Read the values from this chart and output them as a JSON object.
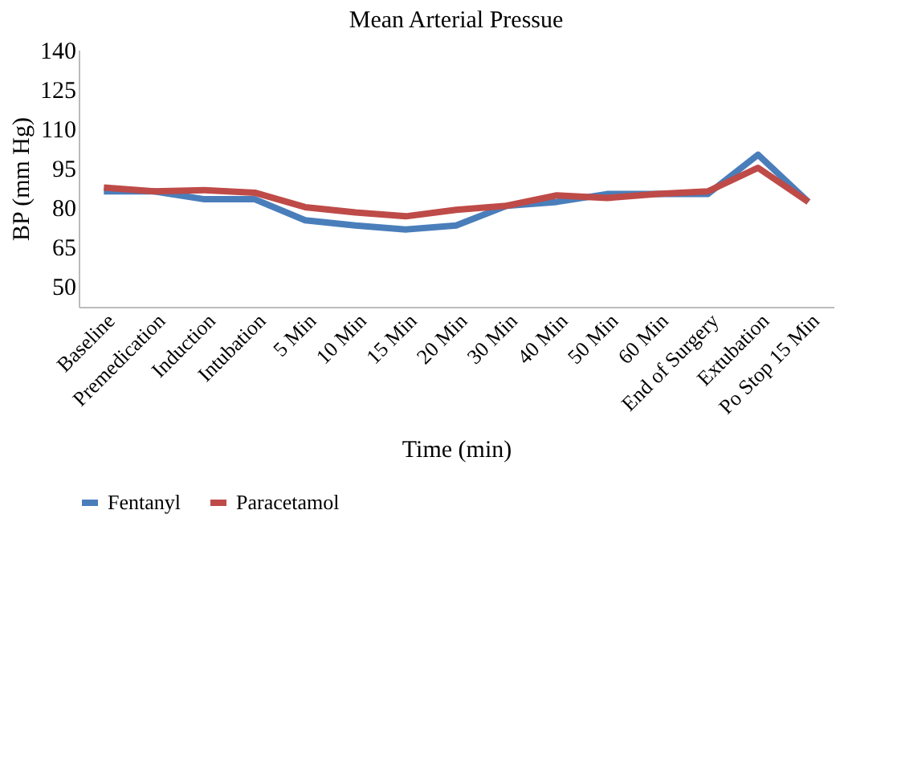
{
  "chart_data": {
    "type": "line",
    "title": "Mean Arterial Pressue",
    "xlabel": "Time (min)",
    "ylabel": "BP (mm Hg)",
    "categories": [
      "Baseline",
      "Premedication",
      "Induction",
      "Intubation",
      "5 Min",
      "10 Min",
      "15 Min",
      "20 Min",
      "30 Min",
      "40 Min",
      "50 Min",
      "60 Min",
      "End of Surgery",
      "Extubation",
      "Po Stop 15 Min"
    ],
    "series": [
      {
        "name": "Fentanyl",
        "color": "#4a7ebb",
        "values": [
          86,
          86,
          83,
          83,
          75,
          73,
          71.5,
          73,
          80.5,
          82,
          85,
          85,
          85,
          100,
          82
        ]
      },
      {
        "name": "Paracetamol",
        "color": "#be4b48",
        "values": [
          87.5,
          86,
          86.5,
          85.5,
          80,
          78,
          76.5,
          79,
          80.5,
          84.5,
          83.5,
          85,
          86,
          95,
          82
        ]
      }
    ],
    "ylim": [
      42,
      140
    ],
    "yticks": [
      50,
      65,
      80,
      95,
      110,
      125,
      140
    ],
    "grid": false,
    "legend": "bottom",
    "marker": "none",
    "line_style": "solid"
  }
}
